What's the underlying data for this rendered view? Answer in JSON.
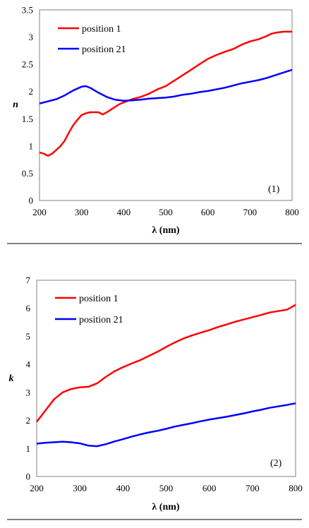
{
  "chart_data": [
    {
      "type": "line",
      "panel_label": "(1)",
      "xlabel": "λ (nm)",
      "ylabel": "n",
      "xlim": [
        200,
        800
      ],
      "ylim": [
        0,
        3.5
      ],
      "x_ticks": [
        "200",
        "300",
        "400",
        "500",
        "600",
        "700",
        "800"
      ],
      "y_ticks": [
        "0",
        "0.5",
        "1",
        "1.5",
        "2",
        "2.5",
        "3",
        "3.5"
      ],
      "grid": false,
      "legend_position": "top-left",
      "series": [
        {
          "name": "position 1",
          "color": "#ff0000",
          "points": [
            [
              200,
              0.88
            ],
            [
              210,
              0.86
            ],
            [
              220,
              0.82
            ],
            [
              230,
              0.86
            ],
            [
              240,
              0.93
            ],
            [
              250,
              1.0
            ],
            [
              260,
              1.1
            ],
            [
              270,
              1.25
            ],
            [
              280,
              1.38
            ],
            [
              290,
              1.48
            ],
            [
              300,
              1.57
            ],
            [
              310,
              1.6
            ],
            [
              320,
              1.62
            ],
            [
              330,
              1.62
            ],
            [
              340,
              1.62
            ],
            [
              350,
              1.58
            ],
            [
              360,
              1.62
            ],
            [
              370,
              1.67
            ],
            [
              380,
              1.72
            ],
            [
              390,
              1.77
            ],
            [
              400,
              1.8
            ],
            [
              420,
              1.86
            ],
            [
              440,
              1.9
            ],
            [
              460,
              1.96
            ],
            [
              480,
              2.04
            ],
            [
              500,
              2.1
            ],
            [
              520,
              2.2
            ],
            [
              540,
              2.3
            ],
            [
              560,
              2.4
            ],
            [
              580,
              2.5
            ],
            [
              600,
              2.6
            ],
            [
              620,
              2.67
            ],
            [
              640,
              2.73
            ],
            [
              660,
              2.78
            ],
            [
              680,
              2.86
            ],
            [
              700,
              2.92
            ],
            [
              720,
              2.96
            ],
            [
              740,
              3.02
            ],
            [
              750,
              3.06
            ],
            [
              760,
              3.08
            ],
            [
              780,
              3.1
            ],
            [
              800,
              3.1
            ]
          ]
        },
        {
          "name": "position 21",
          "color": "#0000ff",
          "points": [
            [
              200,
              1.78
            ],
            [
              220,
              1.82
            ],
            [
              240,
              1.86
            ],
            [
              260,
              1.93
            ],
            [
              280,
              2.02
            ],
            [
              300,
              2.09
            ],
            [
              310,
              2.1
            ],
            [
              320,
              2.07
            ],
            [
              340,
              1.98
            ],
            [
              360,
              1.9
            ],
            [
              380,
              1.85
            ],
            [
              400,
              1.83
            ],
            [
              420,
              1.84
            ],
            [
              440,
              1.85
            ],
            [
              460,
              1.87
            ],
            [
              480,
              1.88
            ],
            [
              500,
              1.89
            ],
            [
              520,
              1.91
            ],
            [
              540,
              1.94
            ],
            [
              560,
              1.96
            ],
            [
              580,
              1.99
            ],
            [
              600,
              2.01
            ],
            [
              620,
              2.04
            ],
            [
              640,
              2.07
            ],
            [
              660,
              2.11
            ],
            [
              680,
              2.15
            ],
            [
              700,
              2.18
            ],
            [
              720,
              2.21
            ],
            [
              740,
              2.25
            ],
            [
              760,
              2.3
            ],
            [
              780,
              2.35
            ],
            [
              800,
              2.4
            ]
          ]
        }
      ]
    },
    {
      "type": "line",
      "panel_label": "(2)",
      "xlabel": "λ (nm)",
      "ylabel": "k",
      "xlim": [
        200,
        800
      ],
      "ylim": [
        0,
        7
      ],
      "x_ticks": [
        "200",
        "300",
        "400",
        "500",
        "600",
        "700",
        "800"
      ],
      "y_ticks": [
        "0",
        "1",
        "2",
        "3",
        "4",
        "5",
        "6",
        "7"
      ],
      "grid": false,
      "legend_position": "top-left",
      "series": [
        {
          "name": "position 1",
          "color": "#ff0000",
          "points": [
            [
              200,
              1.95
            ],
            [
              220,
              2.35
            ],
            [
              240,
              2.75
            ],
            [
              260,
              3.0
            ],
            [
              280,
              3.12
            ],
            [
              300,
              3.18
            ],
            [
              320,
              3.2
            ],
            [
              340,
              3.32
            ],
            [
              360,
              3.55
            ],
            [
              380,
              3.75
            ],
            [
              400,
              3.9
            ],
            [
              420,
              4.03
            ],
            [
              440,
              4.15
            ],
            [
              460,
              4.3
            ],
            [
              480,
              4.45
            ],
            [
              500,
              4.62
            ],
            [
              520,
              4.78
            ],
            [
              540,
              4.92
            ],
            [
              560,
              5.03
            ],
            [
              580,
              5.13
            ],
            [
              600,
              5.22
            ],
            [
              620,
              5.33
            ],
            [
              640,
              5.42
            ],
            [
              660,
              5.52
            ],
            [
              680,
              5.6
            ],
            [
              700,
              5.68
            ],
            [
              720,
              5.76
            ],
            [
              740,
              5.85
            ],
            [
              760,
              5.9
            ],
            [
              780,
              5.95
            ],
            [
              800,
              6.12
            ]
          ]
        },
        {
          "name": "position 21",
          "color": "#0000ff",
          "points": [
            [
              200,
              1.17
            ],
            [
              220,
              1.2
            ],
            [
              240,
              1.22
            ],
            [
              260,
              1.24
            ],
            [
              280,
              1.22
            ],
            [
              300,
              1.18
            ],
            [
              320,
              1.1
            ],
            [
              340,
              1.08
            ],
            [
              360,
              1.15
            ],
            [
              380,
              1.25
            ],
            [
              400,
              1.33
            ],
            [
              420,
              1.42
            ],
            [
              440,
              1.5
            ],
            [
              460,
              1.57
            ],
            [
              480,
              1.63
            ],
            [
              500,
              1.7
            ],
            [
              520,
              1.78
            ],
            [
              540,
              1.84
            ],
            [
              560,
              1.9
            ],
            [
              580,
              1.97
            ],
            [
              600,
              2.03
            ],
            [
              620,
              2.08
            ],
            [
              640,
              2.13
            ],
            [
              660,
              2.19
            ],
            [
              680,
              2.25
            ],
            [
              700,
              2.32
            ],
            [
              720,
              2.38
            ],
            [
              740,
              2.45
            ],
            [
              760,
              2.5
            ],
            [
              780,
              2.55
            ],
            [
              800,
              2.61
            ]
          ]
        }
      ]
    }
  ]
}
